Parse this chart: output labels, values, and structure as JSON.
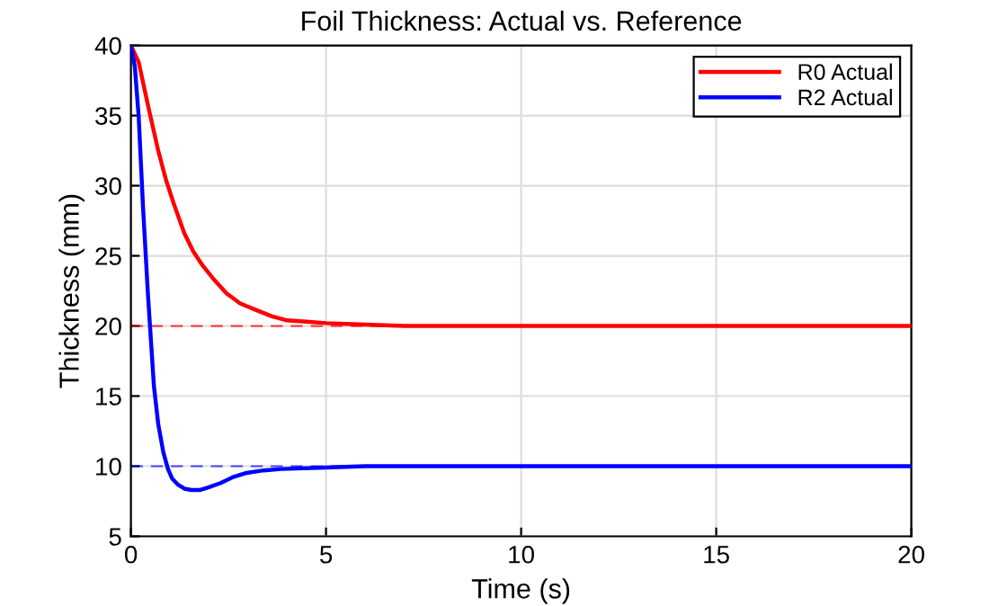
{
  "chart_data": {
    "type": "line",
    "title": "Foil Thickness: Actual vs. Reference",
    "xlabel": "Time (s)",
    "ylabel": "Thickness (mm)",
    "series": [
      {
        "name": "R0 Actual",
        "color": "#ff0000",
        "x": [
          0,
          0.2,
          0.44,
          0.7,
          0.9,
          1.1,
          1.37,
          1.6,
          1.84,
          2.1,
          2.46,
          2.8,
          3.24,
          3.6,
          4.0,
          4.5,
          5,
          6,
          7,
          8,
          10,
          15,
          20
        ],
        "values": [
          40,
          38.8,
          35.7,
          32.5,
          30.4,
          28.7,
          26.6,
          25.3,
          24.3,
          23.4,
          22.3,
          21.6,
          21.1,
          20.7,
          20.4,
          20.3,
          20.2,
          20.1,
          20,
          20,
          20,
          20,
          20
        ]
      },
      {
        "name": "R2 Actual",
        "color": "#0000ff",
        "x": [
          0,
          0.1,
          0.2,
          0.31,
          0.44,
          0.59,
          0.7,
          0.83,
          0.95,
          1.06,
          1.2,
          1.37,
          1.55,
          1.76,
          2.0,
          2.3,
          2.6,
          2.93,
          3.4,
          3.86,
          5,
          6,
          8,
          10,
          15,
          20
        ],
        "values": [
          40,
          38.5,
          34.9,
          28.5,
          22.1,
          15.7,
          13.0,
          11.0,
          9.8,
          9.1,
          8.7,
          8.4,
          8.3,
          8.3,
          8.5,
          8.8,
          9.2,
          9.5,
          9.7,
          9.8,
          9.9,
          10,
          10,
          10,
          10,
          10
        ]
      }
    ],
    "ref_lines": [
      {
        "axis": "y",
        "value": 20,
        "color": "#ff0000",
        "line_style": "dashed"
      },
      {
        "axis": "y",
        "value": 10,
        "color": "#0000ff",
        "line_style": "dashed"
      }
    ],
    "xlim": [
      0,
      20
    ],
    "xticks": [
      0,
      5,
      10,
      15,
      20
    ],
    "ylim": [
      5,
      40
    ],
    "yticks": [
      5,
      10,
      15,
      20,
      25,
      30,
      35,
      40
    ],
    "grid": true,
    "legend": "top right",
    "line_style": "solid",
    "marker": "none"
  }
}
